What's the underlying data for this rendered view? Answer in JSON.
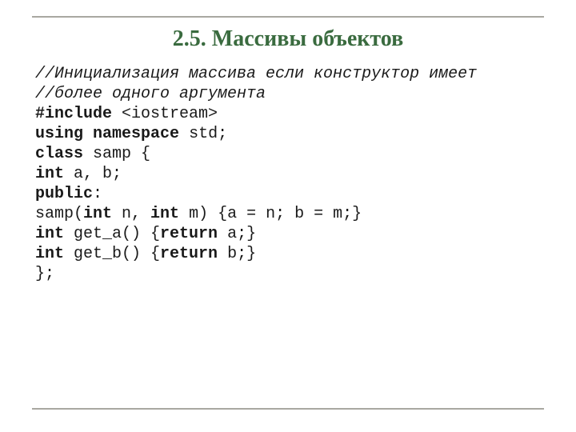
{
  "title": "2.5. Массивы объектов",
  "colors": {
    "title": "#3a6b3f",
    "rule": "#a9a8a1",
    "text": "#1a1a1a",
    "background": "#ffffff"
  },
  "code": {
    "comment1": "//Инициализация массива если конструктор имеет",
    "comment2": "//более одного аргумента",
    "l01_k": "#include",
    "l01_r": " <iostream>",
    "l02_k1": "using",
    "l02_k2": "namespace",
    "l02_r": " std;",
    "l03_k": "class",
    "l03_r": " samp {",
    "l04_k": "int",
    "l04_r": " a, b;",
    "l05_k": "public",
    "l05_r": ":",
    "l06_a": "samp(",
    "l06_k1": "int",
    "l06_b": " n, ",
    "l06_k2": "int",
    "l06_c": " m) {a = n; b = m;}",
    "l07_k1": "int",
    "l07_a": " get_a() {",
    "l07_k2": "return",
    "l07_b": " a;}",
    "l08_k1": "int",
    "l08_a": " get_b() {",
    "l08_k2": "return",
    "l08_b": " b;}",
    "l09": "};"
  },
  "font": {
    "title_family": "Times New Roman",
    "title_size_pt": 21,
    "code_family": "Consolas",
    "code_size_pt": 15
  }
}
